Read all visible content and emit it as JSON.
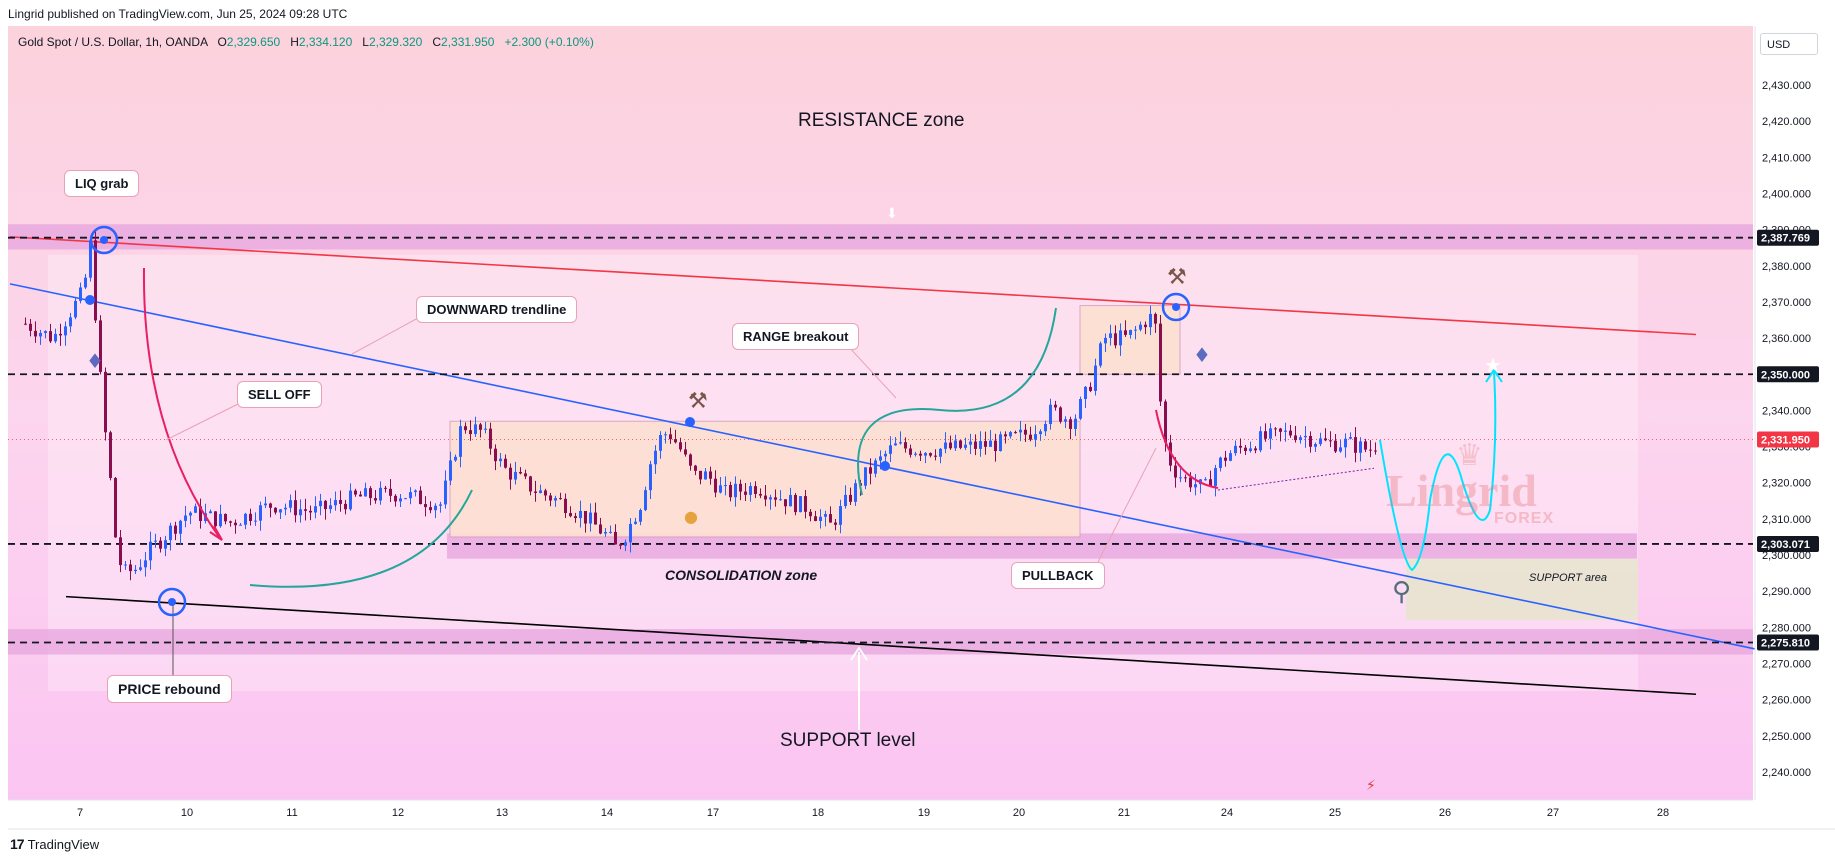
{
  "header": {
    "published": "Lingrid published on TradingView.com, Jun 25, 2024 09:28 UTC"
  },
  "legend": {
    "symbol": "Gold Spot / U.S. Dollar, 1h, OANDA",
    "o_label": "O",
    "o": "2,329.650",
    "h_label": "H",
    "h": "2,334.120",
    "l_label": "L",
    "l": "2,329.320",
    "c_label": "C",
    "c": "2,331.950",
    "change": "+2.300 (+0.10%)"
  },
  "currency": "USD",
  "footer": {
    "logo_text": "TradingView"
  },
  "watermark": {
    "line1": "Lingrid",
    "line2": "FOREX"
  },
  "annotations": {
    "resistance_zone": "RESISTANCE zone",
    "liq_grab": "LIQ grab",
    "downward_trendline": "DOWNWARD trendline",
    "sell_off": "SELL OFF",
    "range_breakout": "RANGE breakout",
    "consolidation_zone": "CONSOLIDATION zone",
    "pullback": "PULLBACK",
    "support_area": "SUPPORT area",
    "price_rebound": "PRICE rebound",
    "support_level": "SUPPORT level"
  },
  "colors": {
    "background_pink": "#fbd3f3",
    "zone_band": "#e7a8de",
    "resistance_line": "#f23645",
    "trend_line": "#2962ff",
    "bull_candle": "#2962ff",
    "bear_candle": "#880e4f",
    "range_box": "#fde0d2",
    "support_area_box": "#e9e4d2",
    "arrow_magenta": "#e91e63",
    "arrow_green": "#26a69a",
    "arrow_cyan": "#00e5ff"
  },
  "chart_data": {
    "type": "candlestick",
    "symbol": "XAUUSD",
    "timeframe": "1h",
    "ylim": [
      2232,
      2445
    ],
    "y_ticks": [
      2240,
      2250,
      2260,
      2270,
      2280,
      2290,
      2300,
      2310,
      2320,
      2330,
      2340,
      2350,
      2360,
      2370,
      2380,
      2390,
      2400,
      2410,
      2420,
      2430
    ],
    "y_tick_labels": [
      "2,240.000",
      "2,250.000",
      "2,260.000",
      "2,270.000",
      "2,280.000",
      "2,290.000",
      "2,300.000",
      "2,310.000",
      "2,320.000",
      "2,330.000",
      "2,340.000",
      "2,350.000",
      "2,360.000",
      "2,370.000",
      "2,380.000",
      "2,390.000",
      "2,400.000",
      "2,410.000",
      "2,420.000",
      "2,430.000"
    ],
    "x_ticks": [
      {
        "label": "7",
        "day": 7
      },
      {
        "label": "10",
        "day": 10
      },
      {
        "label": "11",
        "day": 11
      },
      {
        "label": "12",
        "day": 12
      },
      {
        "label": "13",
        "day": 13
      },
      {
        "label": "14",
        "day": 14
      },
      {
        "label": "17",
        "day": 17
      },
      {
        "label": "18",
        "day": 18
      },
      {
        "label": "19",
        "day": 19
      },
      {
        "label": "20",
        "day": 20
      },
      {
        "label": "21",
        "day": 21
      },
      {
        "label": "24",
        "day": 24
      },
      {
        "label": "25",
        "day": 25
      },
      {
        "label": "26",
        "day": 26
      },
      {
        "label": "27",
        "day": 27
      },
      {
        "label": "28",
        "day": 28
      }
    ],
    "price_labels": [
      {
        "value": 2387.769,
        "label": "2,387.769",
        "bg": "#131722",
        "dashed": true
      },
      {
        "value": 2350.0,
        "label": "2,350.000",
        "bg": "#131722",
        "dashed": true
      },
      {
        "value": 2331.95,
        "label": "2,331.950",
        "bg": "#f23645",
        "dashed": false
      },
      {
        "value": 2303.071,
        "label": "2,303.071",
        "bg": "#131722",
        "dashed": true
      },
      {
        "value": 2275.81,
        "label": "2,275.810",
        "bg": "#131722",
        "dashed": true
      }
    ],
    "zones": [
      {
        "name": "resistance band",
        "from": 2384.5,
        "to": 2391.5
      },
      {
        "name": "support band",
        "from": 2272.5,
        "to": 2279.5
      },
      {
        "name": "mid band",
        "from": 2299,
        "to": 2306
      }
    ],
    "close_path": [
      [
        6.6,
        2364
      ],
      [
        6.8,
        2360
      ],
      [
        7.0,
        2372
      ],
      [
        7.2,
        2380
      ],
      [
        7.25,
        2386
      ],
      [
        7.4,
        2366
      ],
      [
        7.6,
        2340
      ],
      [
        7.8,
        2322
      ],
      [
        8.0,
        2300
      ],
      [
        8.2,
        2295
      ],
      [
        8.5,
        2296
      ],
      [
        8.9,
        2301
      ],
      [
        9.2,
        2304
      ],
      [
        9.6,
        2308
      ],
      [
        10.0,
        2312
      ],
      [
        10.4,
        2309
      ],
      [
        10.8,
        2314
      ],
      [
        11.2,
        2312
      ],
      [
        11.6,
        2316
      ],
      [
        12.0,
        2317
      ],
      [
        12.4,
        2314
      ],
      [
        12.6,
        2336
      ],
      [
        12.8,
        2334
      ],
      [
        13.0,
        2324
      ],
      [
        13.3,
        2318
      ],
      [
        13.6,
        2314
      ],
      [
        13.8,
        2310
      ],
      [
        14.0,
        2305
      ],
      [
        14.2,
        2302
      ],
      [
        14.5,
        2306
      ],
      [
        14.9,
        2314
      ],
      [
        15.2,
        2326
      ],
      [
        15.5,
        2333
      ],
      [
        15.7,
        2334
      ],
      [
        16.0,
        2330
      ],
      [
        16.4,
        2322
      ],
      [
        16.8,
        2322
      ],
      [
        17.1,
        2317
      ],
      [
        17.4,
        2319
      ],
      [
        17.7,
        2315
      ],
      [
        17.9,
        2313
      ],
      [
        18.1,
        2308
      ],
      [
        18.4,
        2321
      ],
      [
        18.7,
        2330
      ],
      [
        19.0,
        2329
      ],
      [
        19.5,
        2330
      ],
      [
        19.8,
        2331
      ],
      [
        20.1,
        2334
      ],
      [
        20.3,
        2340
      ],
      [
        20.5,
        2337
      ],
      [
        20.65,
        2346
      ],
      [
        20.8,
        2360
      ],
      [
        21.0,
        2360
      ],
      [
        21.3,
        2362
      ],
      [
        21.6,
        2365
      ],
      [
        21.8,
        2366
      ],
      [
        21.9,
        2362
      ],
      [
        22.0,
        2344
      ],
      [
        22.2,
        2328
      ],
      [
        22.4,
        2324
      ],
      [
        22.7,
        2321
      ],
      [
        23.0,
        2320
      ],
      [
        23.3,
        2318
      ],
      [
        23.6,
        2324
      ],
      [
        24.0,
        2328
      ],
      [
        24.3,
        2332
      ],
      [
        24.6,
        2334
      ],
      [
        24.9,
        2331
      ],
      [
        25.1,
        2331
      ],
      [
        25.3,
        2329
      ],
      [
        25.4,
        2332
      ]
    ],
    "trendlines": [
      {
        "name": "resistance-trendline",
        "from": [
          6.5,
          2388
        ],
        "to": [
          28.3,
          2361
        ],
        "color": "#f23645"
      },
      {
        "name": "downward-trendline",
        "from": [
          6.5,
          2375
        ],
        "to": [
          29.0,
          2273
        ],
        "color": "#2962ff"
      },
      {
        "name": "lower-trendline",
        "from": [
          6.9,
          2288.5
        ],
        "to": [
          28.3,
          2261.5
        ],
        "color": "#000000"
      }
    ],
    "projection": [
      [
        25.4,
        2333
      ],
      [
        25.6,
        2310
      ],
      [
        25.8,
        2296
      ],
      [
        26.0,
        2318
      ],
      [
        26.2,
        2322
      ],
      [
        26.35,
        2306
      ],
      [
        26.5,
        2330
      ],
      [
        26.65,
        2350
      ]
    ]
  }
}
